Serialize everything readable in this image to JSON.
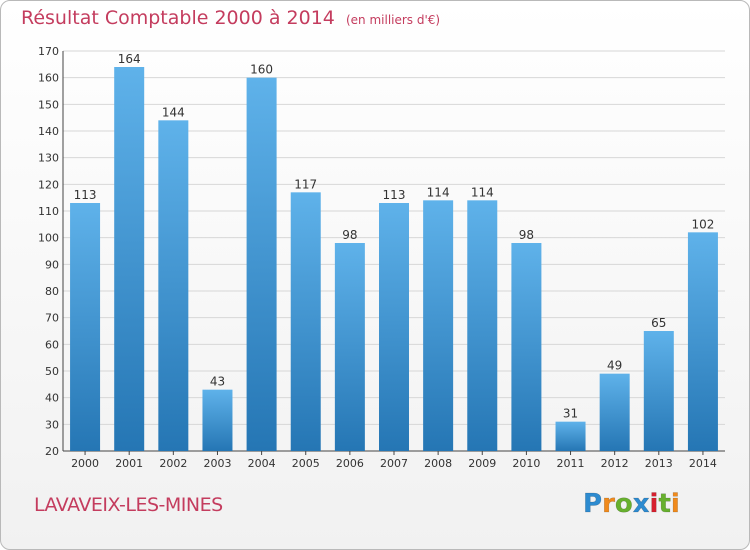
{
  "header": {
    "title": "Résultat Comptable 2000 à 2014",
    "unit": "(en milliers d'€)"
  },
  "footer": {
    "place": "LAVAVEIX-LES-MINES",
    "logo": {
      "letters": [
        "P",
        "r",
        "o",
        "x",
        "i",
        "t",
        "i"
      ],
      "colors": [
        "#2d8bd0",
        "#f08a1c",
        "#67b02e",
        "#2d8bd0",
        "#d6202f",
        "#67b02e",
        "#f08a1c"
      ]
    }
  },
  "colors": {
    "bar_top": "#5fb2ea",
    "bar_bottom": "#2576b4",
    "grid": "#d7d7d7",
    "title": "#c43c5e"
  },
  "chart_data": {
    "type": "bar",
    "categories": [
      "2000",
      "2001",
      "2002",
      "2003",
      "2004",
      "2005",
      "2006",
      "2007",
      "2008",
      "2009",
      "2010",
      "2011",
      "2012",
      "2013",
      "2014"
    ],
    "values": [
      113,
      164,
      144,
      43,
      160,
      117,
      98,
      113,
      114,
      114,
      98,
      31,
      49,
      65,
      102
    ],
    "ylim": [
      20,
      170
    ],
    "yticks": [
      20,
      30,
      40,
      50,
      60,
      70,
      80,
      90,
      100,
      110,
      120,
      130,
      140,
      150,
      160,
      170
    ],
    "grid": true,
    "data_labels": true
  }
}
